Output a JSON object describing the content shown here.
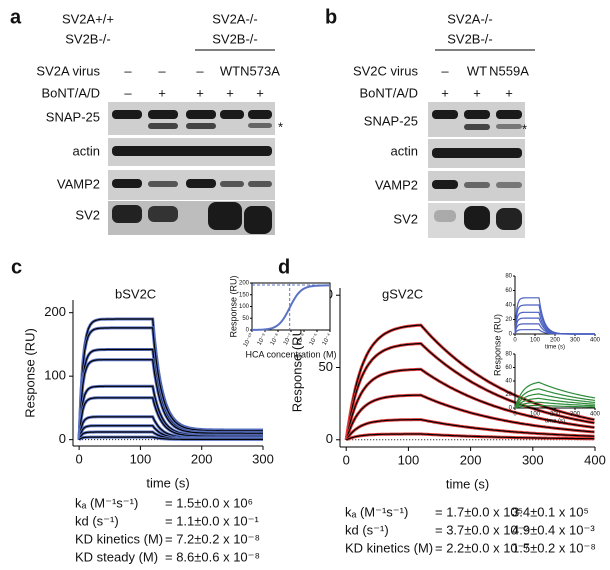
{
  "panel_a": {
    "label": "a",
    "headers": [
      [
        "SV2A+/+",
        "SV2B-/-"
      ],
      [
        "SV2A-/-",
        "SV2B-/-"
      ]
    ],
    "rows": [
      {
        "name": "SV2A virus",
        "values": [
          "–",
          "–",
          "–",
          "WT",
          "N573A"
        ]
      },
      {
        "name": "BoNT/A/D",
        "values": [
          "–",
          "+",
          "+",
          "+",
          "+"
        ]
      }
    ],
    "blots": [
      "SNAP-25",
      "actin",
      "VAMP2",
      "SV2"
    ],
    "asterisk": "*"
  },
  "panel_b": {
    "label": "b",
    "headers": [
      [
        "SV2A-/-",
        "SV2B-/-"
      ]
    ],
    "rows": [
      {
        "name": "SV2C virus",
        "values": [
          "–",
          "WT",
          "N559A"
        ]
      },
      {
        "name": "BoNT/A/D",
        "values": [
          "+",
          "+",
          "+"
        ]
      }
    ],
    "blots": [
      "SNAP-25",
      "actin",
      "VAMP2",
      "SV2"
    ],
    "asterisk": "*"
  },
  "panel_c": {
    "label": "c",
    "title": "bSV2C",
    "ylabel": "Response (RU)",
    "xlabel": "time (s)",
    "xlim": [
      -10,
      300
    ],
    "xticks": [
      0,
      100,
      200,
      300
    ],
    "ylim": [
      -10,
      220
    ],
    "yticks": [
      0,
      100,
      200
    ],
    "plateaus": [
      190,
      176,
      142,
      126,
      84,
      66,
      36,
      22,
      12,
      4
    ],
    "inset": {
      "ylabel": "Response (RU)",
      "xlabel": "HCA concentration (M)",
      "yticks": [
        0,
        50,
        100,
        150,
        200
      ],
      "xticks": [
        {
          "value": -10,
          "label": "10⁻¹⁰"
        },
        {
          "value": -9,
          "label": "10⁻⁹"
        },
        {
          "value": -8,
          "label": "10⁻⁸"
        },
        {
          "value": -7,
          "label": "10⁻⁷"
        },
        {
          "value": -6,
          "label": "10⁻⁶"
        },
        {
          "value": -5,
          "label": "10⁻⁵"
        },
        {
          "value": -4,
          "label": "10⁻⁴"
        }
      ]
    },
    "kinetics": [
      {
        "param": "kₐ (M⁻¹s⁻¹)",
        "values": [
          "= 1.5±0.0 x 10⁶"
        ]
      },
      {
        "param": "kd (s⁻¹)",
        "values": [
          "= 1.1±0.0 x 10⁻¹"
        ]
      },
      {
        "param": "KD kinetics (M)",
        "values": [
          "= 7.2±0.2 x 10⁻⁸"
        ]
      },
      {
        "param": "KD steady (M)",
        "values": [
          "= 8.6±0.6 x 10⁻⁸"
        ]
      }
    ]
  },
  "panel_d": {
    "label": "d",
    "title": "gSV2C",
    "ylabel": "Response (RU)",
    "xlabel": "time (s)",
    "xlim": [
      -10,
      400
    ],
    "xticks": [
      0,
      100,
      200,
      300,
      400
    ],
    "ylim": [
      -5,
      105
    ],
    "yticks": [
      0,
      50,
      100
    ],
    "plateaus": [
      80,
      67,
      49,
      31,
      14,
      4
    ],
    "inset_blue": {
      "ylabel": "Response (RU)",
      "xlabel": "time (s)",
      "yticks": [
        0,
        20,
        40,
        60,
        80
      ],
      "xticks": [
        0,
        100,
        200,
        300,
        400
      ],
      "plateaus": [
        50,
        40,
        30,
        22,
        14,
        6
      ]
    },
    "inset_green": {
      "xlabel": "time (s)",
      "yticks": [
        0,
        20,
        40,
        60,
        80
      ],
      "xticks": [
        0,
        100,
        200,
        300,
        400
      ],
      "plateaus": [
        40,
        30,
        22,
        15,
        9,
        4
      ]
    },
    "kinetics": [
      {
        "param": "kₐ (M⁻¹s⁻¹)",
        "values": [
          "= 1.7±0.0 x 10⁵",
          "3.4±0.1 x 10⁵"
        ]
      },
      {
        "param": "kd (s⁻¹)",
        "values": [
          "= 3.7±0.0 x 10⁻²",
          "4.9±0.4 x 10⁻³"
        ]
      },
      {
        "param": "KD kinetics (M)",
        "values": [
          "= 2.2±0.0 x 10⁻⁷",
          "1.5±0.2 x 10⁻⁸"
        ]
      }
    ]
  }
}
